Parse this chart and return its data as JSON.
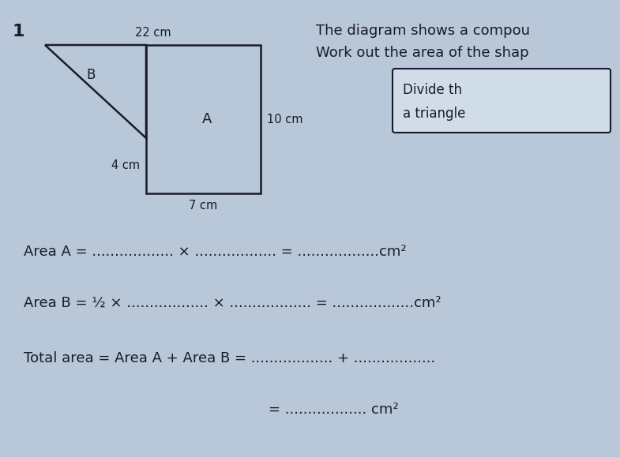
{
  "background_color": "#b8c8d8",
  "title_number": "1",
  "shape_label_A": "A",
  "shape_label_B": "B",
  "dim_top": "22 cm",
  "dim_right": "10 cm",
  "dim_bottom": "7 cm",
  "dim_left": "4 cm",
  "text_right1": "The diagram shows a compou",
  "text_right2": "Work out the area of the shap",
  "hint_text1": "Divide th",
  "hint_text2": "a triangle",
  "area_a_line": "Area A = .................. × .................. = ..................cm²",
  "area_b_line": "Area B = ½ × .................. × .................. = ..................cm²",
  "total_line1": "Total area = Area A + Area B = .................. + ..................",
  "total_line2": "= .................. cm²",
  "text_color": "#1a1a2e",
  "shape_line_color": "#1a1a2e",
  "hint_box_color": "#d0dce8"
}
